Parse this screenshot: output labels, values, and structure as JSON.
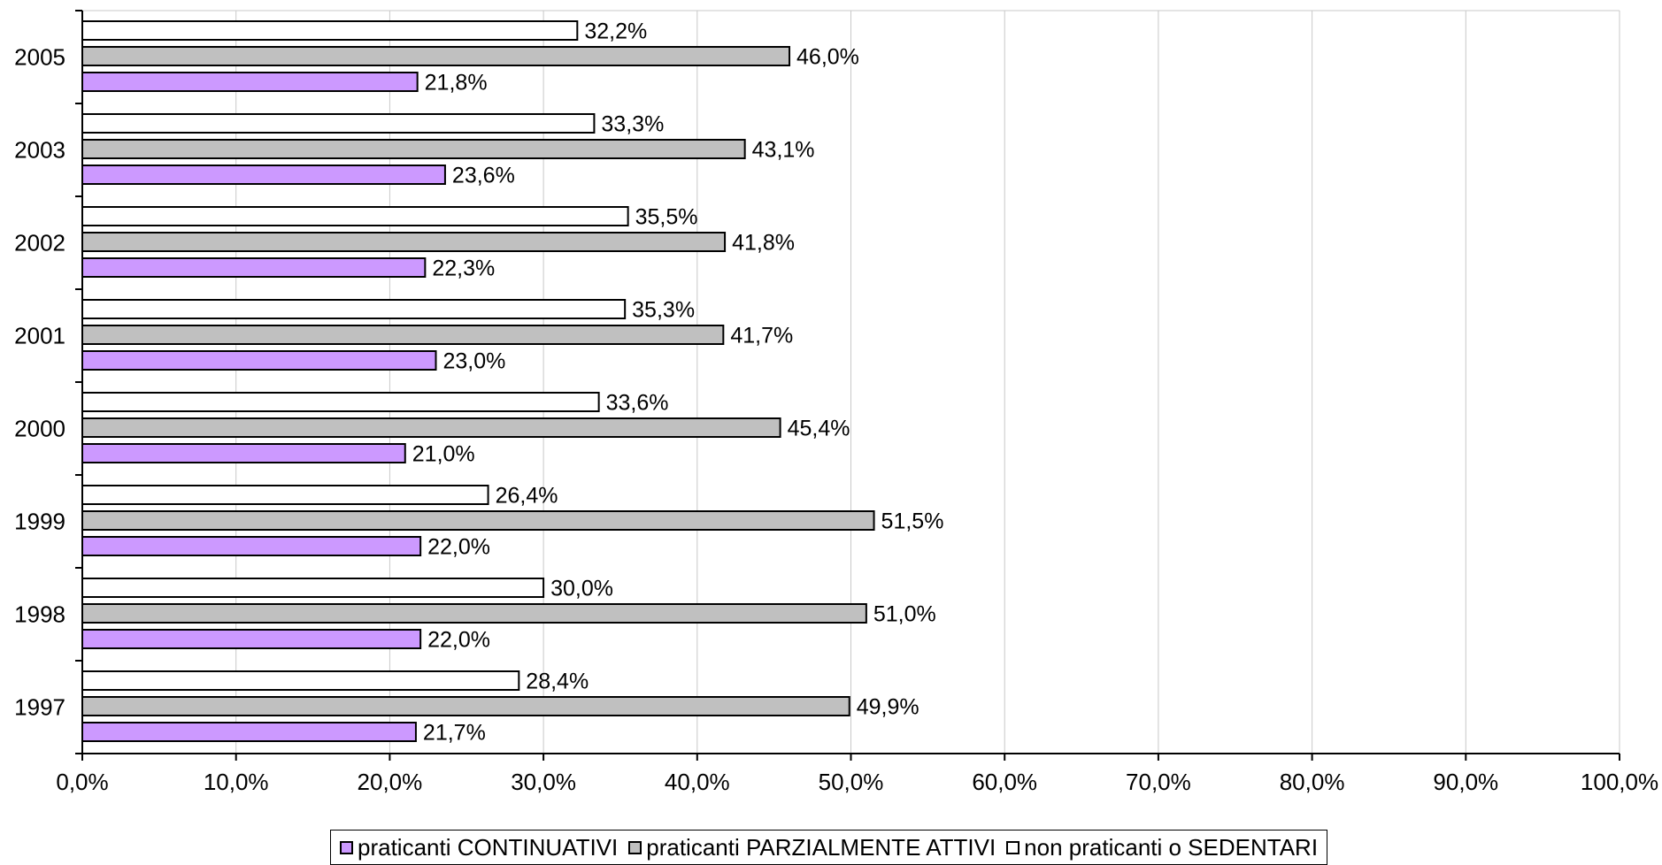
{
  "chart_data": {
    "type": "bar",
    "orientation": "horizontal",
    "categories": [
      "2005",
      "2003",
      "2002",
      "2001",
      "2000",
      "1999",
      "1998",
      "1997"
    ],
    "series": [
      {
        "name": "non praticanti o SEDENTARI",
        "color": "#ffffff",
        "values": [
          32.2,
          33.3,
          35.5,
          35.3,
          33.6,
          26.4,
          30.0,
          28.4
        ]
      },
      {
        "name": "praticanti PARZIALMENTE ATTIVI",
        "color": "#c0c0c0",
        "values": [
          46.0,
          43.1,
          41.8,
          41.7,
          45.4,
          51.5,
          51.0,
          49.9
        ]
      },
      {
        "name": "praticanti CONTINUATIVI",
        "color": "#cc99ff",
        "values": [
          21.8,
          23.6,
          22.3,
          23.0,
          21.0,
          22.0,
          22.0,
          21.7
        ]
      }
    ],
    "data_labels": [
      [
        "32,2%",
        "33,3%",
        "35,5%",
        "35,3%",
        "33,6%",
        "26,4%",
        "30,0%",
        "28,4%"
      ],
      [
        "46,0%",
        "43,1%",
        "41,8%",
        "41,7%",
        "45,4%",
        "51,5%",
        "51,0%",
        "49,9%"
      ],
      [
        "21,8%",
        "23,6%",
        "22,3%",
        "23,0%",
        "21,0%",
        "22,0%",
        "22,0%",
        "21,7%"
      ]
    ],
    "xlim": [
      0,
      100
    ],
    "x_ticks": [
      0,
      10,
      20,
      30,
      40,
      50,
      60,
      70,
      80,
      90,
      100
    ],
    "x_tick_labels": [
      "0,0%",
      "10,0%",
      "20,0%",
      "30,0%",
      "40,0%",
      "50,0%",
      "60,0%",
      "70,0%",
      "80,0%",
      "90,0%",
      "100,0%"
    ],
    "grid": "vertical",
    "legend_position": "bottom",
    "legend": [
      {
        "label": "praticanti CONTINUATIVI",
        "color": "#cc99ff"
      },
      {
        "label": "praticanti PARZIALMENTE ATTIVI",
        "color": "#c0c0c0"
      },
      {
        "label": "non praticanti o SEDENTARI",
        "color": "#ffffff"
      }
    ],
    "title": "",
    "xlabel": "",
    "ylabel": ""
  }
}
